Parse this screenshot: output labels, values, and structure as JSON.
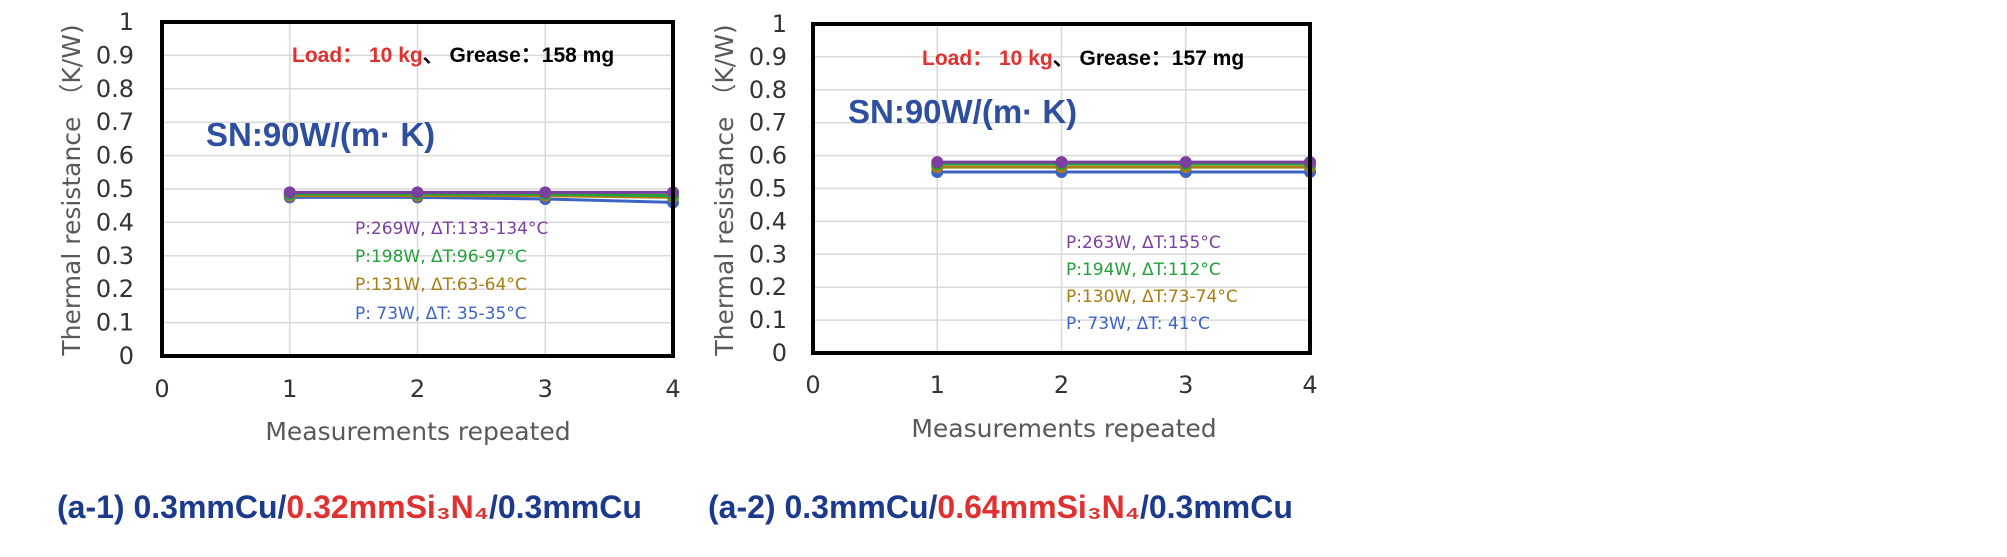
{
  "colors": {
    "purple": "#7b3fa0",
    "green": "#22a13a",
    "gold": "#a87d12",
    "blue": "#3c63c4",
    "red": "#e03030",
    "navy": "#1b3a8c",
    "sn_blue": "#2e4f9e"
  },
  "chart_data": [
    {
      "type": "line",
      "ylabel": "Thermal resistance （K/W)",
      "xlabel": "Measurements  repeated",
      "xlim": [
        0,
        4
      ],
      "ylim": [
        0,
        1
      ],
      "x_ticks": [
        "0",
        "1",
        "2",
        "3",
        "4"
      ],
      "y_ticks": [
        "0",
        "0.1",
        "0.2",
        "0.3",
        "0.4",
        "0.5",
        "0.6",
        "0.7",
        "0.8",
        "0.9",
        "1"
      ],
      "grid": true,
      "header": {
        "load_label": "Load：",
        "load_value": "10 kg",
        "separator": "、",
        "grease_text": "Grease：158 mg"
      },
      "sn_label": "SN:90W/(m· K)",
      "x": [
        1,
        2,
        3,
        4
      ],
      "series": [
        {
          "name": "P:269W, ΔT:133-134°C",
          "color": "#7b3fa0",
          "values": [
            0.49,
            0.49,
            0.49,
            0.49
          ]
        },
        {
          "name": "P:198W, ΔT:96-97°C",
          "color": "#22a13a",
          "values": [
            0.485,
            0.485,
            0.485,
            0.48
          ]
        },
        {
          "name": "P:131W, ΔT:63-64°C",
          "color": "#a87d12",
          "values": [
            0.48,
            0.48,
            0.48,
            0.475
          ]
        },
        {
          "name": "P: 73W, ΔT: 35-35°C",
          "color": "#3c63c4",
          "values": [
            0.475,
            0.475,
            0.47,
            0.46
          ]
        }
      ],
      "caption": {
        "prefix": "(a-1) 0.3mmCu/",
        "highlight": "0.32mmSi₃N₄",
        "suffix": "/0.3mmCu"
      }
    },
    {
      "type": "line",
      "ylabel": "Thermal resistance （K/W)",
      "xlabel": "Measurements repeated",
      "xlim": [
        0,
        4
      ],
      "ylim": [
        0,
        1
      ],
      "x_ticks": [
        "0",
        "1",
        "2",
        "3",
        "4"
      ],
      "y_ticks": [
        "0",
        "0.1",
        "0.2",
        "0.3",
        "0.4",
        "0.5",
        "0.6",
        "0.7",
        "0.8",
        "0.9",
        "1"
      ],
      "grid": true,
      "header": {
        "load_label": "Load：",
        "load_value": "10 kg",
        "separator": "、",
        "grease_text": "Grease：157 mg"
      },
      "sn_label": "SN:90W/(m· K)",
      "x": [
        1,
        2,
        3,
        4
      ],
      "series": [
        {
          "name": "P:263W, ΔT:155°C",
          "color": "#7b3fa0",
          "values": [
            0.58,
            0.58,
            0.58,
            0.58
          ]
        },
        {
          "name": "P:194W, ΔT:112°C",
          "color": "#22a13a",
          "values": [
            0.575,
            0.575,
            0.575,
            0.575
          ]
        },
        {
          "name": "P:130W, ΔT:73-74°C",
          "color": "#a87d12",
          "values": [
            0.565,
            0.565,
            0.565,
            0.565
          ]
        },
        {
          "name": "P: 73W, ΔT: 41°C",
          "color": "#3c63c4",
          "values": [
            0.55,
            0.55,
            0.55,
            0.55
          ]
        }
      ],
      "caption": {
        "prefix": "(a-2) 0.3mmCu/",
        "highlight": "0.64mmSi₃N₄",
        "suffix": "/0.3mmCu"
      }
    }
  ]
}
